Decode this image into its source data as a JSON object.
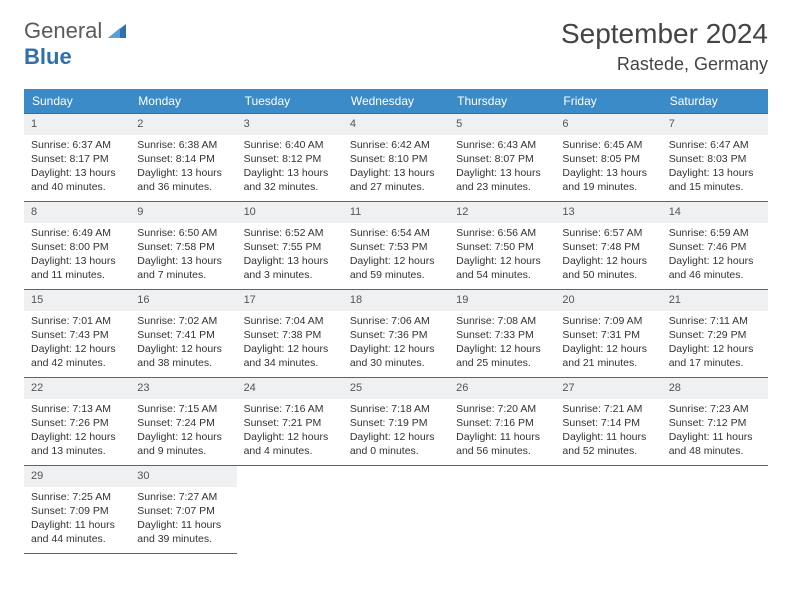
{
  "logo": {
    "word1": "General",
    "word2": "Blue"
  },
  "header": {
    "month": "September 2024",
    "location": "Rastede, Germany"
  },
  "colors": {
    "header_bg": "#3b8bc9",
    "header_text": "#ffffff",
    "daynum_bg": "#eef0f2",
    "border": "#2f6fb0",
    "text": "#333333"
  },
  "weekdays": [
    "Sunday",
    "Monday",
    "Tuesday",
    "Wednesday",
    "Thursday",
    "Friday",
    "Saturday"
  ],
  "weeks": [
    [
      {
        "n": "1",
        "sr": "Sunrise: 6:37 AM",
        "ss": "Sunset: 8:17 PM",
        "d1": "Daylight: 13 hours",
        "d2": "and 40 minutes."
      },
      {
        "n": "2",
        "sr": "Sunrise: 6:38 AM",
        "ss": "Sunset: 8:14 PM",
        "d1": "Daylight: 13 hours",
        "d2": "and 36 minutes."
      },
      {
        "n": "3",
        "sr": "Sunrise: 6:40 AM",
        "ss": "Sunset: 8:12 PM",
        "d1": "Daylight: 13 hours",
        "d2": "and 32 minutes."
      },
      {
        "n": "4",
        "sr": "Sunrise: 6:42 AM",
        "ss": "Sunset: 8:10 PM",
        "d1": "Daylight: 13 hours",
        "d2": "and 27 minutes."
      },
      {
        "n": "5",
        "sr": "Sunrise: 6:43 AM",
        "ss": "Sunset: 8:07 PM",
        "d1": "Daylight: 13 hours",
        "d2": "and 23 minutes."
      },
      {
        "n": "6",
        "sr": "Sunrise: 6:45 AM",
        "ss": "Sunset: 8:05 PM",
        "d1": "Daylight: 13 hours",
        "d2": "and 19 minutes."
      },
      {
        "n": "7",
        "sr": "Sunrise: 6:47 AM",
        "ss": "Sunset: 8:03 PM",
        "d1": "Daylight: 13 hours",
        "d2": "and 15 minutes."
      }
    ],
    [
      {
        "n": "8",
        "sr": "Sunrise: 6:49 AM",
        "ss": "Sunset: 8:00 PM",
        "d1": "Daylight: 13 hours",
        "d2": "and 11 minutes."
      },
      {
        "n": "9",
        "sr": "Sunrise: 6:50 AM",
        "ss": "Sunset: 7:58 PM",
        "d1": "Daylight: 13 hours",
        "d2": "and 7 minutes."
      },
      {
        "n": "10",
        "sr": "Sunrise: 6:52 AM",
        "ss": "Sunset: 7:55 PM",
        "d1": "Daylight: 13 hours",
        "d2": "and 3 minutes."
      },
      {
        "n": "11",
        "sr": "Sunrise: 6:54 AM",
        "ss": "Sunset: 7:53 PM",
        "d1": "Daylight: 12 hours",
        "d2": "and 59 minutes."
      },
      {
        "n": "12",
        "sr": "Sunrise: 6:56 AM",
        "ss": "Sunset: 7:50 PM",
        "d1": "Daylight: 12 hours",
        "d2": "and 54 minutes."
      },
      {
        "n": "13",
        "sr": "Sunrise: 6:57 AM",
        "ss": "Sunset: 7:48 PM",
        "d1": "Daylight: 12 hours",
        "d2": "and 50 minutes."
      },
      {
        "n": "14",
        "sr": "Sunrise: 6:59 AM",
        "ss": "Sunset: 7:46 PM",
        "d1": "Daylight: 12 hours",
        "d2": "and 46 minutes."
      }
    ],
    [
      {
        "n": "15",
        "sr": "Sunrise: 7:01 AM",
        "ss": "Sunset: 7:43 PM",
        "d1": "Daylight: 12 hours",
        "d2": "and 42 minutes."
      },
      {
        "n": "16",
        "sr": "Sunrise: 7:02 AM",
        "ss": "Sunset: 7:41 PM",
        "d1": "Daylight: 12 hours",
        "d2": "and 38 minutes."
      },
      {
        "n": "17",
        "sr": "Sunrise: 7:04 AM",
        "ss": "Sunset: 7:38 PM",
        "d1": "Daylight: 12 hours",
        "d2": "and 34 minutes."
      },
      {
        "n": "18",
        "sr": "Sunrise: 7:06 AM",
        "ss": "Sunset: 7:36 PM",
        "d1": "Daylight: 12 hours",
        "d2": "and 30 minutes."
      },
      {
        "n": "19",
        "sr": "Sunrise: 7:08 AM",
        "ss": "Sunset: 7:33 PM",
        "d1": "Daylight: 12 hours",
        "d2": "and 25 minutes."
      },
      {
        "n": "20",
        "sr": "Sunrise: 7:09 AM",
        "ss": "Sunset: 7:31 PM",
        "d1": "Daylight: 12 hours",
        "d2": "and 21 minutes."
      },
      {
        "n": "21",
        "sr": "Sunrise: 7:11 AM",
        "ss": "Sunset: 7:29 PM",
        "d1": "Daylight: 12 hours",
        "d2": "and 17 minutes."
      }
    ],
    [
      {
        "n": "22",
        "sr": "Sunrise: 7:13 AM",
        "ss": "Sunset: 7:26 PM",
        "d1": "Daylight: 12 hours",
        "d2": "and 13 minutes."
      },
      {
        "n": "23",
        "sr": "Sunrise: 7:15 AM",
        "ss": "Sunset: 7:24 PM",
        "d1": "Daylight: 12 hours",
        "d2": "and 9 minutes."
      },
      {
        "n": "24",
        "sr": "Sunrise: 7:16 AM",
        "ss": "Sunset: 7:21 PM",
        "d1": "Daylight: 12 hours",
        "d2": "and 4 minutes."
      },
      {
        "n": "25",
        "sr": "Sunrise: 7:18 AM",
        "ss": "Sunset: 7:19 PM",
        "d1": "Daylight: 12 hours",
        "d2": "and 0 minutes."
      },
      {
        "n": "26",
        "sr": "Sunrise: 7:20 AM",
        "ss": "Sunset: 7:16 PM",
        "d1": "Daylight: 11 hours",
        "d2": "and 56 minutes."
      },
      {
        "n": "27",
        "sr": "Sunrise: 7:21 AM",
        "ss": "Sunset: 7:14 PM",
        "d1": "Daylight: 11 hours",
        "d2": "and 52 minutes."
      },
      {
        "n": "28",
        "sr": "Sunrise: 7:23 AM",
        "ss": "Sunset: 7:12 PM",
        "d1": "Daylight: 11 hours",
        "d2": "and 48 minutes."
      }
    ],
    [
      {
        "n": "29",
        "sr": "Sunrise: 7:25 AM",
        "ss": "Sunset: 7:09 PM",
        "d1": "Daylight: 11 hours",
        "d2": "and 44 minutes."
      },
      {
        "n": "30",
        "sr": "Sunrise: 7:27 AM",
        "ss": "Sunset: 7:07 PM",
        "d1": "Daylight: 11 hours",
        "d2": "and 39 minutes."
      },
      null,
      null,
      null,
      null,
      null
    ]
  ]
}
